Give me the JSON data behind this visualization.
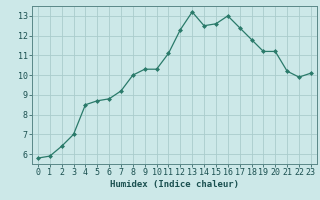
{
  "x": [
    0,
    1,
    2,
    3,
    4,
    5,
    6,
    7,
    8,
    9,
    10,
    11,
    12,
    13,
    14,
    15,
    16,
    17,
    18,
    19,
    20,
    21,
    22,
    23
  ],
  "y": [
    5.8,
    5.9,
    6.4,
    7.0,
    8.5,
    8.7,
    8.8,
    9.2,
    10.0,
    10.3,
    10.3,
    11.1,
    12.3,
    13.2,
    12.5,
    12.6,
    13.0,
    12.4,
    11.8,
    11.2,
    11.2,
    10.2,
    9.9,
    10.1
  ],
  "line_color": "#2a7a6a",
  "marker": "D",
  "marker_size": 2.0,
  "bg_color": "#cce8e8",
  "grid_color": "#aacccc",
  "xlabel": "Humidex (Indice chaleur)",
  "xlim": [
    -0.5,
    23.5
  ],
  "ylim": [
    5.5,
    13.5
  ],
  "xticks": [
    0,
    1,
    2,
    3,
    4,
    5,
    6,
    7,
    8,
    9,
    10,
    11,
    12,
    13,
    14,
    15,
    16,
    17,
    18,
    19,
    20,
    21,
    22,
    23
  ],
  "yticks": [
    6,
    7,
    8,
    9,
    10,
    11,
    12,
    13
  ],
  "tick_color": "#1a5050",
  "label_fontsize": 6.5,
  "tick_fontsize": 6.0
}
